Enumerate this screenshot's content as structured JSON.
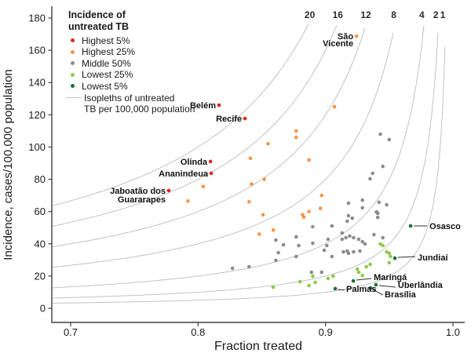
{
  "palette": {
    "highest5": "#e2231a",
    "highest25": "#f79445",
    "middle50": "#8c8c8c",
    "lowest25": "#8fc94e",
    "lowest5": "#17702f",
    "isopleth": "#c2c2c2",
    "axis": "#404040",
    "text": "#1a1a1a"
  },
  "legend": {
    "title_lines": [
      "Incidence of",
      "untreated TB"
    ],
    "items": [
      {
        "label": "Highest 5%",
        "color_key": "highest5"
      },
      {
        "label": "Highest 25%",
        "color_key": "highest25"
      },
      {
        "label": "Middle 50%",
        "color_key": "middle50"
      },
      {
        "label": "Lowest 25%",
        "color_key": "lowest25"
      },
      {
        "label": "Lowest 5%",
        "color_key": "lowest5"
      },
      {
        "label_lines": [
          "Isopleths of untreated",
          "TB per 100,000 population"
        ],
        "type": "line",
        "color_key": "isopleth"
      }
    ]
  },
  "chart_data": {
    "type": "scatter",
    "title": "",
    "xlabel": "Fraction treated",
    "ylabel": "Incidence, cases/100,000 population",
    "xlim": [
      0.7,
      1.0
    ],
    "ylim": [
      0,
      180
    ],
    "grid": false,
    "legend_position": "top-left",
    "x_ticks": [
      0.7,
      0.8,
      0.9,
      1.0
    ],
    "x_tick_labels": [
      "0.7",
      "0.8",
      "0.9",
      "1.0"
    ],
    "y_ticks": [
      0,
      20,
      40,
      60,
      80,
      100,
      120,
      140,
      160,
      180
    ],
    "y_tick_labels": [
      "0",
      "20",
      "40",
      "60",
      "80",
      "100",
      "120",
      "140",
      "160",
      "180"
    ],
    "isopleths": {
      "values": [
        20,
        16,
        12,
        8,
        4,
        2,
        1
      ],
      "relation": "incidence = value / (1 - fraction treated)",
      "label": "Isopleths of untreated TB per 100,000 population"
    },
    "series": [
      {
        "name": "Highest 5%",
        "color_key": "highest5",
        "points": []
      },
      {
        "name": "Highest 25%",
        "color_key": "highest25",
        "points": [
          [
            0.877,
            110.0
          ],
          [
            0.877,
            106.0
          ],
          [
            0.855,
            102.0
          ],
          [
            0.841,
            93.0
          ],
          [
            0.887,
            92.0
          ],
          [
            0.907,
            125.0
          ],
          [
            0.852,
            80.0
          ],
          [
            0.842,
            77.0
          ],
          [
            0.84,
            66.0
          ],
          [
            0.897,
            70.0
          ],
          [
            0.896,
            62.0
          ],
          [
            0.887,
            60.0
          ],
          [
            0.882,
            58.0
          ],
          [
            0.883,
            56.5
          ],
          [
            0.851,
            58.0
          ],
          [
            0.859,
            48.5
          ],
          [
            0.848,
            46.0
          ],
          [
            0.804,
            75.5
          ],
          [
            0.792,
            66.5
          ]
        ]
      },
      {
        "name": "Middle 50%",
        "color_key": "middle50",
        "points": [
          [
            0.918,
            65.2
          ],
          [
            0.917,
            54.0
          ],
          [
            0.918,
            57.4
          ],
          [
            0.921,
            55.9
          ],
          [
            0.943,
            108.0
          ],
          [
            0.95,
            104.6
          ],
          [
            0.945,
            88.0
          ],
          [
            0.937,
            83.7
          ],
          [
            0.935,
            80.3
          ],
          [
            0.929,
            67.1
          ],
          [
            0.929,
            62.3
          ],
          [
            0.942,
            65.7
          ],
          [
            0.948,
            64.2
          ],
          [
            0.94,
            59.8
          ],
          [
            0.941,
            58.9
          ],
          [
            0.941,
            56.4
          ],
          [
            0.861,
            42.3
          ],
          [
            0.867,
            39.4
          ],
          [
            0.877,
            44.3
          ],
          [
            0.879,
            38.9
          ],
          [
            0.89,
            50.6
          ],
          [
            0.89,
            40.4
          ],
          [
            0.905,
            51.1
          ],
          [
            0.902,
            42.8
          ],
          [
            0.901,
            38.9
          ],
          [
            0.899,
            36.0
          ],
          [
            0.905,
            32.1
          ],
          [
            0.863,
            34.5
          ],
          [
            0.861,
            29.7
          ],
          [
            0.877,
            32.1
          ],
          [
            0.889,
            22.4
          ],
          [
            0.897,
            22.4
          ],
          [
            0.827,
            24.8
          ],
          [
            0.84,
            25.8
          ],
          [
            0.913,
            46.7
          ],
          [
            0.913,
            42.8
          ],
          [
            0.916,
            43.8
          ],
          [
            0.919,
            44.8
          ],
          [
            0.922,
            43.8
          ],
          [
            0.926,
            42.8
          ],
          [
            0.929,
            41.3
          ],
          [
            0.931,
            39.9
          ],
          [
            0.938,
            45.7
          ],
          [
            0.945,
            43.8
          ],
          [
            0.914,
            35.0
          ],
          [
            0.917,
            35.5
          ],
          [
            0.918,
            34.1
          ],
          [
            0.922,
            35.0
          ],
          [
            0.927,
            35.5
          ]
        ]
      },
      {
        "name": "Lowest 25%",
        "color_key": "lowest25",
        "points": [
          [
            0.943,
            39.9
          ],
          [
            0.945,
            38.9
          ],
          [
            0.948,
            35.0
          ],
          [
            0.95,
            34.1
          ],
          [
            0.951,
            32.1
          ],
          [
            0.95,
            28.2
          ],
          [
            0.935,
            27.2
          ],
          [
            0.932,
            25.8
          ],
          [
            0.925,
            24.3
          ],
          [
            0.926,
            22.4
          ],
          [
            0.929,
            20.4
          ],
          [
            0.89,
            19.9
          ],
          [
            0.902,
            18.5
          ],
          [
            0.906,
            19.9
          ],
          [
            0.88,
            16.5
          ],
          [
            0.887,
            14.1
          ],
          [
            0.892,
            16.1
          ],
          [
            0.859,
            13.1
          ]
        ]
      },
      {
        "name": "Lowest 5%",
        "color_key": "lowest5",
        "points": []
      }
    ],
    "annotations": [
      {
        "name": "São Vicente",
        "lines": [
          "São",
          "Vicente"
        ],
        "x": 0.9243,
        "y": 168.8,
        "color_key": "highest25",
        "anchor": "end",
        "dx": -4,
        "dys": [
          4,
          13
        ],
        "leader": null
      },
      {
        "name": "Belém",
        "lines": [
          "Belém"
        ],
        "x": 0.8164,
        "y": 126.0,
        "color_key": "highest5",
        "anchor": "end",
        "dx": -4,
        "dys": [
          4
        ],
        "leader": null
      },
      {
        "name": "Recife",
        "lines": [
          "Recife"
        ],
        "x": 0.8368,
        "y": 117.7,
        "color_key": "highest5",
        "anchor": "end",
        "dx": -4,
        "dys": [
          4
        ],
        "leader": null
      },
      {
        "name": "Olinda",
        "lines": [
          "Olinda"
        ],
        "x": 0.8097,
        "y": 91.0,
        "color_key": "highest5",
        "anchor": "end",
        "dx": -4,
        "dys": [
          4
        ],
        "leader": null
      },
      {
        "name": "Ananindeua",
        "lines": [
          "Ananindeua"
        ],
        "x": 0.8103,
        "y": 83.7,
        "color_key": "highest5",
        "anchor": "end",
        "dx": -4,
        "dys": [
          4
        ],
        "leader": null
      },
      {
        "name": "Jaboatão dos Guararapes",
        "lines": [
          "Jaboatão dos",
          "Guararapes"
        ],
        "x": 0.777,
        "y": 73.0,
        "color_key": "highest5",
        "anchor": "end",
        "dx": -4,
        "dys": [
          4,
          15
        ],
        "leader": null
      },
      {
        "name": "Osasco",
        "lines": [
          "Osasco"
        ],
        "x": 0.9668,
        "y": 51.1,
        "color_key": "lowest5",
        "anchor": "start",
        "dx": 24,
        "dys": [
          4
        ],
        "leader": [
          4,
          0,
          21,
          0
        ]
      },
      {
        "name": "Jundiaí",
        "lines": [
          "Jundiaí"
        ],
        "x": 0.9544,
        "y": 31.1,
        "color_key": "lowest5",
        "anchor": "start",
        "dx": 29,
        "dys": [
          3
        ],
        "leader": [
          4,
          -1,
          26,
          -2
        ]
      },
      {
        "name": "Maringá",
        "lines": [
          "Maringá"
        ],
        "x": 0.9218,
        "y": 17.0,
        "color_key": "lowest5",
        "anchor": "start",
        "dx": 26,
        "dys": [
          -1
        ],
        "leader": [
          4,
          -1,
          23,
          -3
        ]
      },
      {
        "name": "Uberlândia",
        "lines": [
          "Uberlândia"
        ],
        "x": 0.9396,
        "y": 14.6,
        "color_key": "lowest5",
        "anchor": "start",
        "dx": 28,
        "dys": [
          4
        ],
        "leader": [
          4,
          1,
          25,
          3
        ]
      },
      {
        "name": "Brasília",
        "lines": [
          "Brasília"
        ],
        "x": 0.9353,
        "y": 12.6,
        "color_key": "lowest5",
        "anchor": "start",
        "dx": 18,
        "dys": [
          12
        ],
        "leader": [
          3,
          2,
          16,
          9
        ]
      },
      {
        "name": "Palmas",
        "lines": [
          "Palmas"
        ],
        "x": 0.9076,
        "y": 12.2,
        "color_key": "lowest5",
        "anchor": "start",
        "dx": 14,
        "dys": [
          4
        ],
        "leader": [
          3,
          1,
          12,
          2
        ]
      }
    ]
  }
}
